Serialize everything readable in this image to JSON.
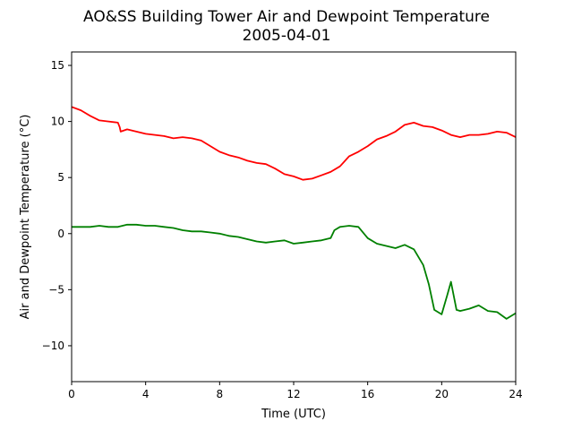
{
  "chart_data": {
    "type": "line",
    "title": "AO&SS Building Tower Air and Dewpoint Temperature",
    "subtitle": "2005-04-01",
    "xlabel": "Time (UTC)",
    "ylabel": "Air and Dewpoint Temperature (°C)",
    "xlim": [
      0,
      24
    ],
    "ylim": [
      -13.2,
      16.2
    ],
    "xticks": [
      0,
      4,
      8,
      12,
      16,
      20,
      24
    ],
    "yticks": [
      -10,
      -5,
      0,
      5,
      10,
      15
    ],
    "grid": false,
    "series": [
      {
        "color": "#ff0000",
        "x": [
          0,
          0.5,
          1,
          1.5,
          2,
          2.5,
          2.6,
          2.65,
          3,
          3.5,
          4,
          4.5,
          5,
          5.5,
          6,
          6.5,
          7,
          7.5,
          8,
          8.5,
          9,
          9.5,
          10,
          10.5,
          11,
          11.5,
          12,
          12.5,
          13,
          13.5,
          14,
          14.5,
          15,
          15.5,
          16,
          16.5,
          17,
          17.5,
          18,
          18.5,
          19,
          19.5,
          20,
          20.5,
          21,
          21.5,
          22,
          22.5,
          23,
          23.5,
          24
        ],
        "y": [
          11.3,
          11.0,
          10.5,
          10.1,
          10.0,
          9.9,
          9.5,
          9.1,
          9.3,
          9.1,
          8.9,
          8.8,
          8.7,
          8.5,
          8.6,
          8.5,
          8.3,
          7.8,
          7.3,
          7.0,
          6.8,
          6.5,
          6.3,
          6.2,
          5.8,
          5.3,
          5.1,
          4.8,
          4.9,
          5.2,
          5.5,
          6.0,
          6.9,
          7.3,
          7.8,
          8.4,
          8.7,
          9.1,
          9.7,
          9.9,
          9.6,
          9.5,
          9.2,
          8.8,
          8.6,
          8.8,
          8.8,
          8.9,
          9.1,
          9.0,
          8.6
        ]
      },
      {
        "color": "#008000",
        "x": [
          0,
          0.5,
          1,
          1.5,
          2,
          2.5,
          3,
          3.5,
          4,
          4.5,
          5,
          5.5,
          6,
          6.5,
          7,
          7.5,
          8,
          8.5,
          9,
          9.5,
          10,
          10.5,
          11,
          11.5,
          12,
          12.5,
          13,
          13.5,
          14,
          14.2,
          14.5,
          15,
          15.5,
          16,
          16.5,
          17,
          17.5,
          18,
          18.5,
          19,
          19.3,
          19.6,
          20,
          20.3,
          20.5,
          20.8,
          21,
          21.5,
          22,
          22.5,
          23,
          23.5,
          24
        ],
        "y": [
          0.6,
          0.6,
          0.6,
          0.7,
          0.6,
          0.6,
          0.8,
          0.8,
          0.7,
          0.7,
          0.6,
          0.5,
          0.3,
          0.2,
          0.2,
          0.1,
          0.0,
          -0.2,
          -0.3,
          -0.5,
          -0.7,
          -0.8,
          -0.7,
          -0.6,
          -0.9,
          -0.8,
          -0.7,
          -0.6,
          -0.4,
          0.3,
          0.6,
          0.7,
          0.6,
          -0.4,
          -0.9,
          -1.1,
          -1.3,
          -1.0,
          -1.4,
          -2.8,
          -4.5,
          -6.8,
          -7.2,
          -5.5,
          -4.3,
          -6.8,
          -6.9,
          -6.7,
          -6.4,
          -6.9,
          -7.0,
          -7.6,
          -7.1
        ]
      }
    ]
  }
}
